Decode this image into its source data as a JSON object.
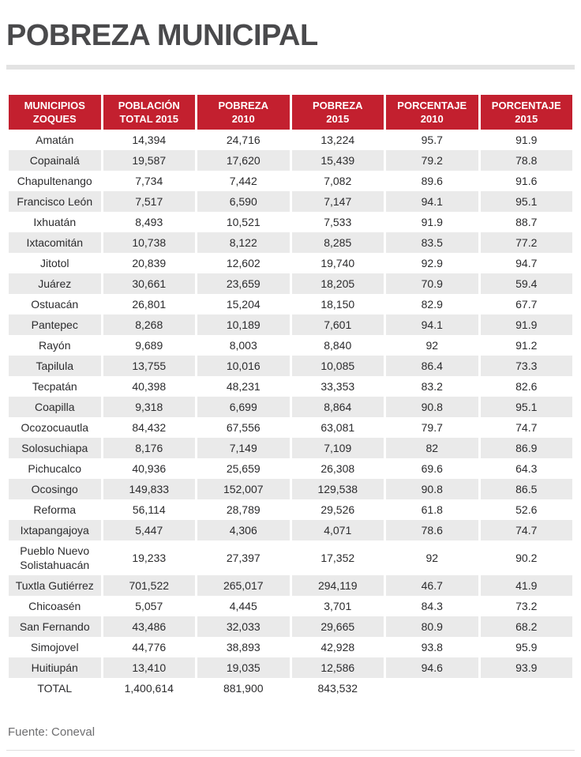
{
  "chart_data": {
    "type": "table",
    "title": "POBREZA MUNICIPAL",
    "columns": [
      "MUNICIPIOS\nZOQUES",
      "POBLACIÓN\nTOTAL 2015",
      "POBREZA\n2010",
      "POBREZA\n2015",
      "PORCENTAJE\n2010",
      "PORCENTAJE\n2015"
    ],
    "rows": [
      [
        "Amatán",
        "14,394",
        "24,716",
        "13,224",
        "95.7",
        "91.9"
      ],
      [
        "Copainalá",
        "19,587",
        "17,620",
        "15,439",
        "79.2",
        "78.8"
      ],
      [
        "Chapultenango",
        "7,734",
        "7,442",
        "7,082",
        "89.6",
        "91.6"
      ],
      [
        "Francisco León",
        "7,517",
        "6,590",
        "7,147",
        "94.1",
        "95.1"
      ],
      [
        "Ixhuatán",
        "8,493",
        "10,521",
        "7,533",
        "91.9",
        "88.7"
      ],
      [
        "Ixtacomitán",
        "10,738",
        "8,122",
        "8,285",
        "83.5",
        "77.2"
      ],
      [
        "Jitotol",
        "20,839",
        "12,602",
        "19,740",
        "92.9",
        "94.7"
      ],
      [
        "Juárez",
        "30,661",
        "23,659",
        "18,205",
        "70.9",
        "59.4"
      ],
      [
        "Ostuacán",
        "26,801",
        "15,204",
        "18,150",
        "82.9",
        "67.7"
      ],
      [
        "Pantepec",
        "8,268",
        "10,189",
        "7,601",
        "94.1",
        "91.9"
      ],
      [
        "Rayón",
        "9,689",
        "8,003",
        "8,840",
        "92",
        "91.2"
      ],
      [
        "Tapilula",
        "13,755",
        "10,016",
        "10,085",
        "86.4",
        "73.3"
      ],
      [
        "Tecpatán",
        "40,398",
        "48,231",
        "33,353",
        "83.2",
        "82.6"
      ],
      [
        "Coapilla",
        "9,318",
        "6,699",
        "8,864",
        "90.8",
        "95.1"
      ],
      [
        "Ocozocuautla",
        "84,432",
        "67,556",
        "63,081",
        "79.7",
        "74.7"
      ],
      [
        "Solosuchiapa",
        "8,176",
        "7,149",
        "7,109",
        "82",
        "86.9"
      ],
      [
        "Pichucalco",
        "40,936",
        "25,659",
        "26,308",
        "69.6",
        "64.3"
      ],
      [
        "Ocosingo",
        "149,833",
        "152,007",
        "129,538",
        "90.8",
        "86.5"
      ],
      [
        "Reforma",
        "56,114",
        "28,789",
        "29,526",
        "61.8",
        "52.6"
      ],
      [
        "Ixtapangajoya",
        "5,447",
        "4,306",
        "4,071",
        "78.6",
        "74.7"
      ],
      [
        "Pueblo Nuevo Solistahuacán",
        "19,233",
        "27,397",
        "17,352",
        "92",
        "90.2"
      ],
      [
        "Tuxtla Gutiérrez",
        "701,522",
        "265,017",
        "294,119",
        "46.7",
        "41.9"
      ],
      [
        "Chicoasén",
        "5,057",
        "4,445",
        "3,701",
        "84.3",
        "73.2"
      ],
      [
        "San Fernando",
        "43,486",
        "32,033",
        "29,665",
        "80.9",
        "68.2"
      ],
      [
        "Simojovel",
        "44,776",
        "38,893",
        "42,928",
        "93.8",
        "95.9"
      ],
      [
        "Huitiupán",
        "13,410",
        "19,035",
        "12,586",
        "94.6",
        "93.9"
      ]
    ],
    "total_row": [
      "TOTAL",
      "1,400,614",
      "881,900",
      "843,532",
      "",
      ""
    ],
    "source": "Fuente: Coneval",
    "layout": {
      "grid": false,
      "row_striping": "alternate",
      "header_position": "top"
    }
  },
  "colors": {
    "header_red": "#c3202f",
    "stripe_gray": "#eaeaea",
    "title_gray": "#4a4a4c",
    "body_text": "#2b2b2d",
    "source_text": "#6e6e70"
  }
}
